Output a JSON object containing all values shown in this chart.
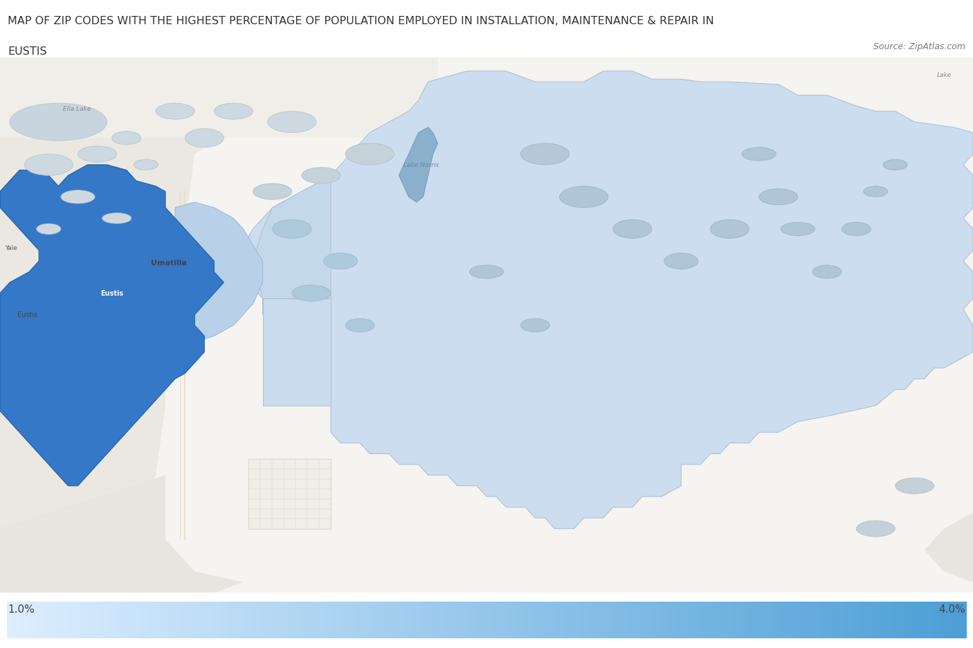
{
  "title_line1": "MAP OF ZIP CODES WITH THE HIGHEST PERCENTAGE OF POPULATION EMPLOYED IN INSTALLATION, MAINTENANCE & REPAIR IN",
  "title_line2": "EUSTIS",
  "source_text": "Source: ZipAtlas.com",
  "colorbar_min": 1.0,
  "colorbar_max": 4.0,
  "colorbar_label_min": "1.0%",
  "colorbar_label_max": "4.0%",
  "background_color": "#ffffff",
  "map_bg_color": "#f8f8f8",
  "title_fontsize": 11.5,
  "source_fontsize": 9,
  "color_low": "#ddeeff",
  "color_high": "#4d9fd6",
  "color_highest": "#3578c8",
  "color_mid_low": "#c8dff0",
  "color_mid": "#b8d4eb",
  "water_dark": "#9ab8cc",
  "water_light": "#c8d8e5",
  "map_gray": "#e0ddd8",
  "map_gray2": "#d8d4ce"
}
